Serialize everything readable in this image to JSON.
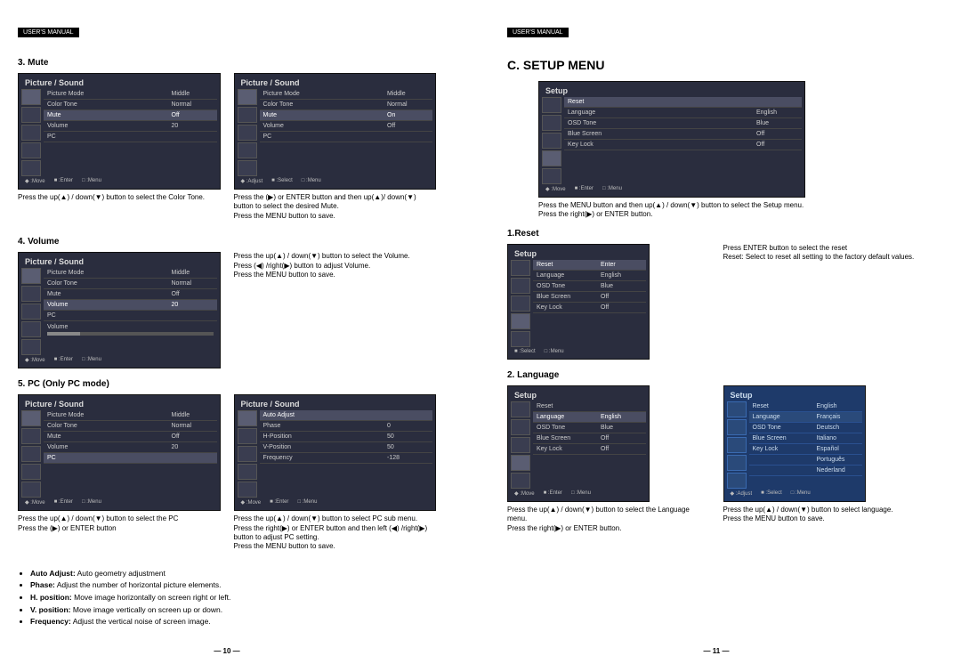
{
  "header": "USER'S MANUAL",
  "left": {
    "s3": {
      "title": "3. Mute",
      "ss1": {
        "title": "Picture / Sound",
        "rows": [
          [
            "Picture Mode",
            "Middle"
          ],
          [
            "Color Tone",
            "Normal"
          ],
          [
            "Mute",
            "Off"
          ],
          [
            "Volume",
            "20"
          ],
          [
            "PC",
            ""
          ]
        ],
        "hl": 2,
        "footer": [
          "◆ :Move",
          "■ :Enter",
          "□ :Menu"
        ],
        "cap": "Press the up(▲) / down(▼) button to select the Color Tone."
      },
      "ss2": {
        "title": "Picture / Sound",
        "rows": [
          [
            "Picture Mode",
            "Middle"
          ],
          [
            "Color Tone",
            "Normal"
          ],
          [
            "Mute",
            "On"
          ],
          [
            "Volume",
            "Off"
          ],
          [
            "PC",
            ""
          ]
        ],
        "hl": 2,
        "footer": [
          "◆ :Adjust",
          "■ :Select",
          "□ :Menu"
        ],
        "cap": "Press the (▶) or ENTER button and then up(▲)/ down(▼) button to select the desired Mute.\nPress the MENU button to save."
      }
    },
    "s4": {
      "title": "4. Volume",
      "ss": {
        "title": "Picture / Sound",
        "rows": [
          [
            "Picture Mode",
            "Middle"
          ],
          [
            "Color Tone",
            "Normal"
          ],
          [
            "Mute",
            "Off"
          ],
          [
            "Volume",
            "20"
          ],
          [
            "PC",
            ""
          ]
        ],
        "hl": 3,
        "slider": {
          "label": "Volume",
          "val": 20
        },
        "footer": [
          "◆ :Move",
          "■ :Enter",
          "□ :Menu"
        ]
      },
      "cap": "Press the up(▲) / down(▼) button to select the Volume.\nPress (◀) /right(▶) button to adjust Volume.\nPress the MENU button to save."
    },
    "s5": {
      "title": "5. PC (Only PC mode)",
      "ss1": {
        "title": "Picture / Sound",
        "rows": [
          [
            "Picture Mode",
            "Middle"
          ],
          [
            "Color Tone",
            "Normal"
          ],
          [
            "Mute",
            "Off"
          ],
          [
            "Volume",
            "20"
          ],
          [
            "PC",
            ""
          ]
        ],
        "hl": 4,
        "footer": [
          "◆ :Move",
          "■ :Enter",
          "□ :Menu"
        ],
        "cap": "Press the up(▲) / down(▼) button to select the PC\nPress the (▶) or ENTER button"
      },
      "ss2": {
        "title": "Picture / Sound",
        "rows": [
          [
            "Auto Adjust",
            ""
          ],
          [
            "Phase",
            "0"
          ],
          [
            "H-Position",
            "50"
          ],
          [
            "V-Position",
            "50"
          ],
          [
            "Frequency",
            "-128"
          ]
        ],
        "hl": 0,
        "footer": [
          "◆ :Move",
          "■ :Enter",
          "□ :Menu"
        ],
        "cap": "Press the up(▲) / down(▼) button to select PC sub menu. Press the right(▶) or ENTER button and then left (◀) /right(▶) button to adjust PC setting.\nPress the MENU button to save."
      },
      "bullets": [
        {
          "b": "Auto Adjust:",
          "t": " Auto geometry adjustment"
        },
        {
          "b": "Phase:",
          "t": " Adjust the number of horizontal picture elements."
        },
        {
          "b": "H. position:",
          "t": " Move image horizontally on screen right or left."
        },
        {
          "b": "V. position:",
          "t": " Move image vertically on screen up or down."
        },
        {
          "b": "Frequency:",
          "t": " Adjust the vertical noise of screen image."
        }
      ]
    },
    "pagenum": "— 10 —"
  },
  "right": {
    "title": "C. SETUP MENU",
    "ssMain": {
      "title": "Setup",
      "rows": [
        [
          "Reset",
          ""
        ],
        [
          "Language",
          "English"
        ],
        [
          "OSD Tone",
          "Blue"
        ],
        [
          "Blue Screen",
          "Off"
        ],
        [
          "Key Lock",
          "Off"
        ]
      ],
      "hl": 0,
      "footer": [
        "◆ :Move",
        "■ :Enter",
        "□ :Menu"
      ]
    },
    "capMain": "Press the MENU button and then up(▲) / down(▼) button to select the Setup menu.\nPress the right(▶) or ENTER button.",
    "s1": {
      "title": "1.Reset",
      "ss": {
        "title": "Setup",
        "rows": [
          [
            "Reset",
            "Enter"
          ],
          [
            "Language",
            "English"
          ],
          [
            "OSD Tone",
            "Blue"
          ],
          [
            "Blue Screen",
            "Off"
          ],
          [
            "Key Lock",
            "Off"
          ]
        ],
        "hl": 0,
        "footer": [
          "■ :Select",
          "□ :Menu"
        ]
      },
      "cap": "Press ENTER button to select the reset\nReset: Select to reset all setting to the factory default values."
    },
    "s2": {
      "title": "2. Language",
      "ss1": {
        "title": "Setup",
        "rows": [
          [
            "Reset",
            ""
          ],
          [
            "Language",
            "English"
          ],
          [
            "OSD Tone",
            "Blue"
          ],
          [
            "Blue Screen",
            "Off"
          ],
          [
            "Key Lock",
            "Off"
          ]
        ],
        "hl": 1,
        "footer": [
          "◆ :Move",
          "■ :Enter",
          "□ :Menu"
        ],
        "cap": "Press the up(▲) / down(▼) button to select the Language menu.\nPress the right(▶) or ENTER button."
      },
      "ss2": {
        "title": "Setup",
        "rows": [
          [
            "Reset",
            "English"
          ],
          [
            "Language",
            "Français"
          ],
          [
            "OSD Tone",
            "Deutsch"
          ],
          [
            "Blue Screen",
            "Italiano"
          ],
          [
            "Key Lock",
            "Español"
          ],
          [
            "",
            "Português"
          ],
          [
            "",
            "Nederland"
          ]
        ],
        "hl": 1,
        "footer": [
          "◆ :Adjust",
          "■ :Select",
          "□ :Menu"
        ],
        "cap": "Press the up(▲) / down(▼) button to select language.\nPress the MENU button to save."
      }
    },
    "pagenum": "— 11 —"
  }
}
